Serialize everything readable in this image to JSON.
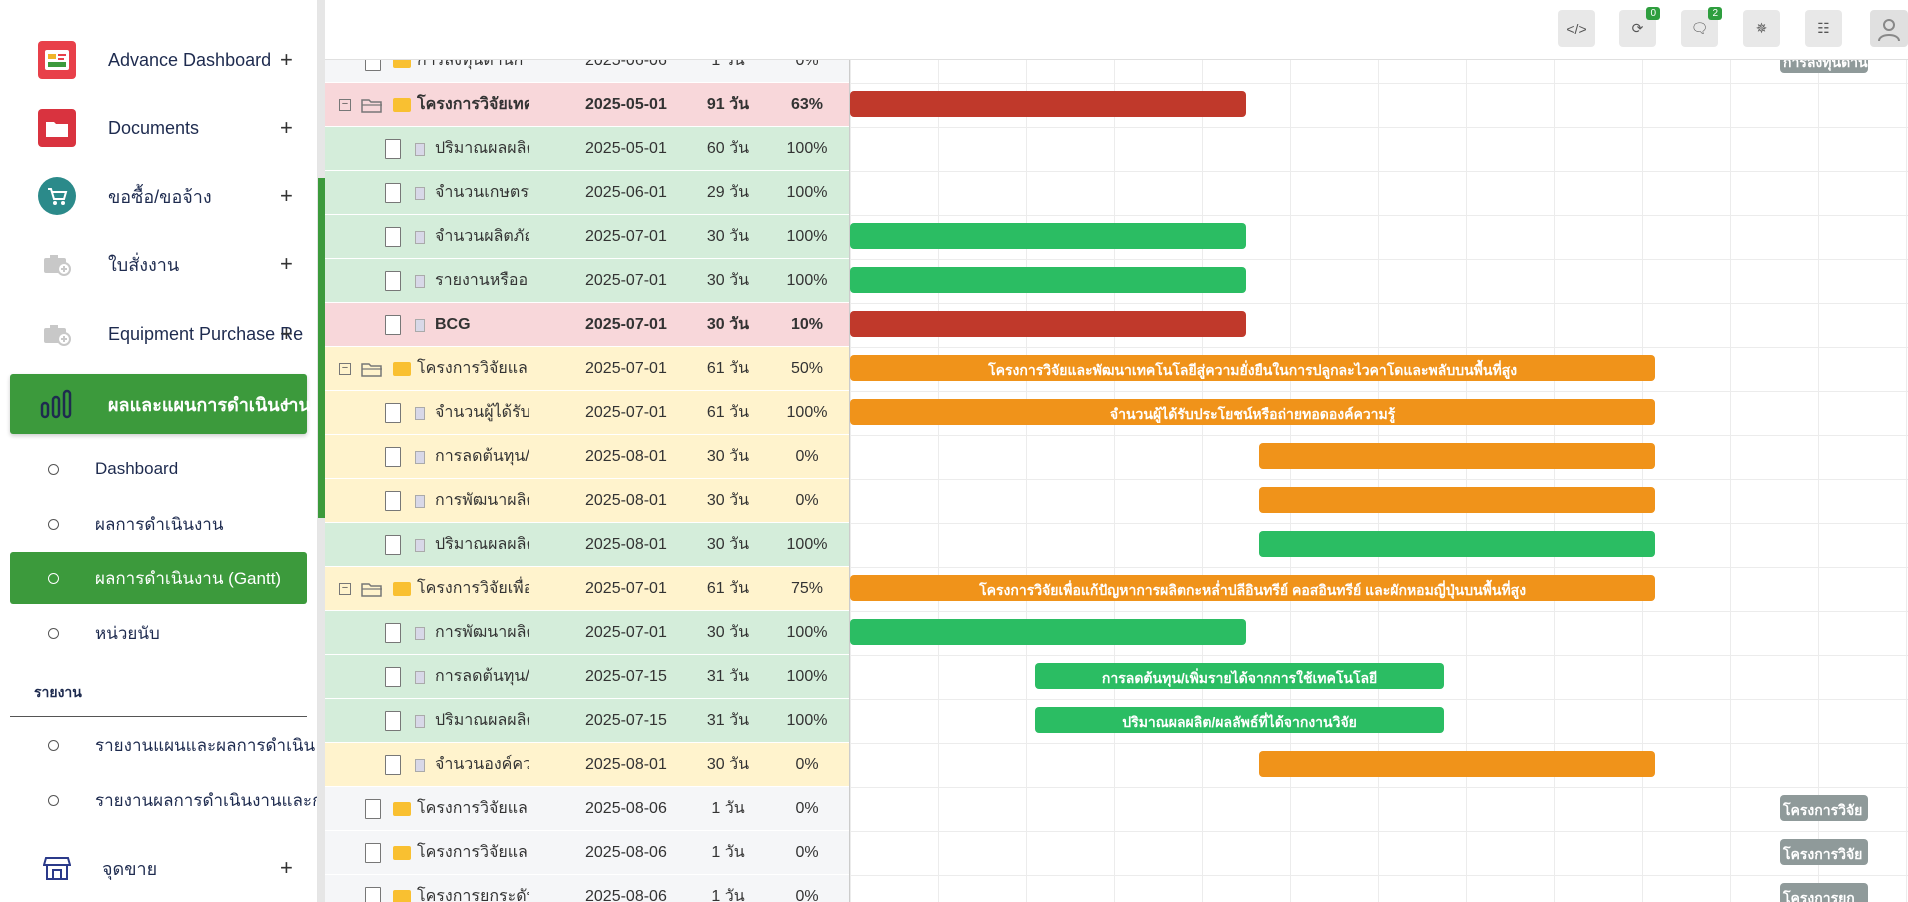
{
  "sidebar": {
    "menu": [
      {
        "label": "Advance Dashboard",
        "icon": "dashboard-icon"
      },
      {
        "label": "Documents",
        "icon": "folder-icon"
      },
      {
        "label": "ขอซื้อ/ขอจ้าง",
        "icon": "cart-icon"
      },
      {
        "label": "ใบสั่งงาน",
        "icon": "camera-add-icon"
      },
      {
        "label": "Equipment Purchase Re",
        "icon": "camera-add-icon"
      },
      {
        "label": "ผลและแผนการดำเนินงาน",
        "icon": "bar-chart-icon"
      }
    ],
    "submenu": [
      {
        "label": "Dashboard"
      },
      {
        "label": "ผลการดำเนินงาน"
      },
      {
        "label": "ผลการดำเนินงาน (Gantt)"
      },
      {
        "label": "หน่วยนับ"
      }
    ],
    "section_title": "รายงาน",
    "reports": [
      {
        "label": "รายงานแผนและผลการดำเนิน"
      },
      {
        "label": "รายงานผลการดำเนินงานและก"
      }
    ],
    "pos_label": "จุดขาย",
    "plus": "+"
  },
  "topbar": {
    "buttons": [
      {
        "icon": "code-icon",
        "badge": ""
      },
      {
        "icon": "history-icon",
        "badge": "0"
      },
      {
        "icon": "chat-icon",
        "badge": "2"
      },
      {
        "icon": "bug-icon",
        "badge": ""
      },
      {
        "icon": "translate-icon",
        "badge": ""
      },
      {
        "icon": "user-avatar-icon",
        "badge": ""
      }
    ]
  },
  "grid": {
    "rows": [
      {
        "name": "การลงทุนด้านการปลูกพื",
        "start": "2025-06-06",
        "duration": "1 วัน",
        "progress": "0%",
        "type": "task",
        "color": "#f5f6f8"
      },
      {
        "name": "โครงการวิจัยเทคโนโล",
        "start": "2025-05-01",
        "duration": "91 วัน",
        "progress": "63%",
        "type": "project",
        "color": "#f8d7da"
      },
      {
        "name": "ปริมาณผลผลิตกาแฟ",
        "start": "2025-05-01",
        "duration": "60 วัน",
        "progress": "100%",
        "type": "sub",
        "color": "#d4edda"
      },
      {
        "name": "จำนวนเกษตรกรที่ได้",
        "start": "2025-06-01",
        "duration": "29 วัน",
        "progress": "100%",
        "type": "sub",
        "color": "#d4edda"
      },
      {
        "name": "จำนวนผลิตภัณฑ์กาแ",
        "start": "2025-07-01",
        "duration": "30 วัน",
        "progress": "100%",
        "type": "sub",
        "color": "#d4edda"
      },
      {
        "name": "รายงานหรือองค์ความ",
        "start": "2025-07-01",
        "duration": "30 วัน",
        "progress": "100%",
        "type": "sub",
        "color": "#d4edda"
      },
      {
        "name": "BCG",
        "start": "2025-07-01",
        "duration": "30 วัน",
        "progress": "10%",
        "type": "sub-bold",
        "color": "#f8d7da"
      },
      {
        "name": "โครงการวิจัยและพัฒนา",
        "start": "2025-07-01",
        "duration": "61 วัน",
        "progress": "50%",
        "type": "project",
        "color": "#fff3cd"
      },
      {
        "name": "จำนวนผู้ได้รับประโยา",
        "start": "2025-07-01",
        "duration": "61 วัน",
        "progress": "100%",
        "type": "sub",
        "color": "#fff3cd"
      },
      {
        "name": "การลดต้นทุน/เพิ่มราย",
        "start": "2025-08-01",
        "duration": "30 วัน",
        "progress": "0%",
        "type": "sub",
        "color": "#fff3cd"
      },
      {
        "name": "การพัฒนาผลิตภัณฑ์(",
        "start": "2025-08-01",
        "duration": "30 วัน",
        "progress": "0%",
        "type": "sub",
        "color": "#fff3cd"
      },
      {
        "name": "ปริมาณผลผลิต/ผลลั",
        "start": "2025-08-01",
        "duration": "30 วัน",
        "progress": "100%",
        "type": "sub",
        "color": "#d4edda"
      },
      {
        "name": "โครงการวิจัยเพื่อแก้ปัญ",
        "start": "2025-07-01",
        "duration": "61 วัน",
        "progress": "75%",
        "type": "project",
        "color": "#fff3cd"
      },
      {
        "name": "การพัฒนาผลิตภัณฑ์(",
        "start": "2025-07-01",
        "duration": "30 วัน",
        "progress": "100%",
        "type": "sub",
        "color": "#d4edda"
      },
      {
        "name": "การลดต้นทุน/เพิ่มราย",
        "start": "2025-07-15",
        "duration": "31 วัน",
        "progress": "100%",
        "type": "sub",
        "color": "#d4edda"
      },
      {
        "name": "ปริมาณผลผลิต/ผลลั",
        "start": "2025-07-15",
        "duration": "31 วัน",
        "progress": "100%",
        "type": "sub",
        "color": "#d4edda"
      },
      {
        "name": "จำนวนองค์ความรู้/งา",
        "start": "2025-08-01",
        "duration": "30 วัน",
        "progress": "0%",
        "type": "sub",
        "color": "#fff3cd"
      },
      {
        "name": "โครงการวิจัยและพัฒนา",
        "start": "2025-08-06",
        "duration": "1 วัน",
        "progress": "0%",
        "type": "task",
        "color": "#f5f6f8"
      },
      {
        "name": "โครงการวิจัยและพัฒนา",
        "start": "2025-08-06",
        "duration": "1 วัน",
        "progress": "0%",
        "type": "task",
        "color": "#f5f6f8"
      },
      {
        "name": "โครงการยกระดับความพ",
        "start": "2025-08-06",
        "duration": "1 วัน",
        "progress": "0%",
        "type": "task",
        "color": "#f5f6f8"
      }
    ]
  },
  "chart": {
    "bars": [
      {
        "row": 0,
        "color": "gray",
        "label": "การลงทุนด้าน"
      },
      {
        "row": 1,
        "color": "red",
        "label": ""
      },
      {
        "row": 4,
        "color": "green",
        "label": ""
      },
      {
        "row": 5,
        "color": "green",
        "label": ""
      },
      {
        "row": 6,
        "color": "red",
        "label": ""
      },
      {
        "row": 7,
        "color": "orange",
        "label": "โครงการวิจัยและพัฒนาเทคโนโลยีสู่ความยั่งยืนในการปลูกละไวคาโดและพลับบนพื้นที่สูง"
      },
      {
        "row": 8,
        "color": "orange",
        "label": "จำนวนผู้ได้รับประโยชน์หรือถ่ายทอดองค์ความรู้"
      },
      {
        "row": 9,
        "color": "orange",
        "label": ""
      },
      {
        "row": 10,
        "color": "orange",
        "label": ""
      },
      {
        "row": 11,
        "color": "green",
        "label": ""
      },
      {
        "row": 12,
        "color": "orange",
        "label": "โครงการวิจัยเพื่อแก้ปัญหาการผลิตกะหล่ำปลีอินทรีย์ คอสอินทรีย์ และผักหอมญี่ปุ่นบนพื้นที่สูง"
      },
      {
        "row": 13,
        "color": "green",
        "label": ""
      },
      {
        "row": 14,
        "color": "green",
        "label": "การลดต้นทุน/เพิ่มรายได้จากการใช้เทคโนโลยี"
      },
      {
        "row": 15,
        "color": "green",
        "label": "ปริมาณผลผลิต/ผลลัพธ์ที่ได้จากงานวิจัย"
      },
      {
        "row": 16,
        "color": "orange",
        "label": ""
      },
      {
        "row": 17,
        "color": "gray",
        "label": "โครงการวิจัย"
      },
      {
        "row": 18,
        "color": "gray",
        "label": "โครงการวิจัย"
      },
      {
        "row": 19,
        "color": "gray",
        "label": "โครงการยก"
      }
    ]
  }
}
